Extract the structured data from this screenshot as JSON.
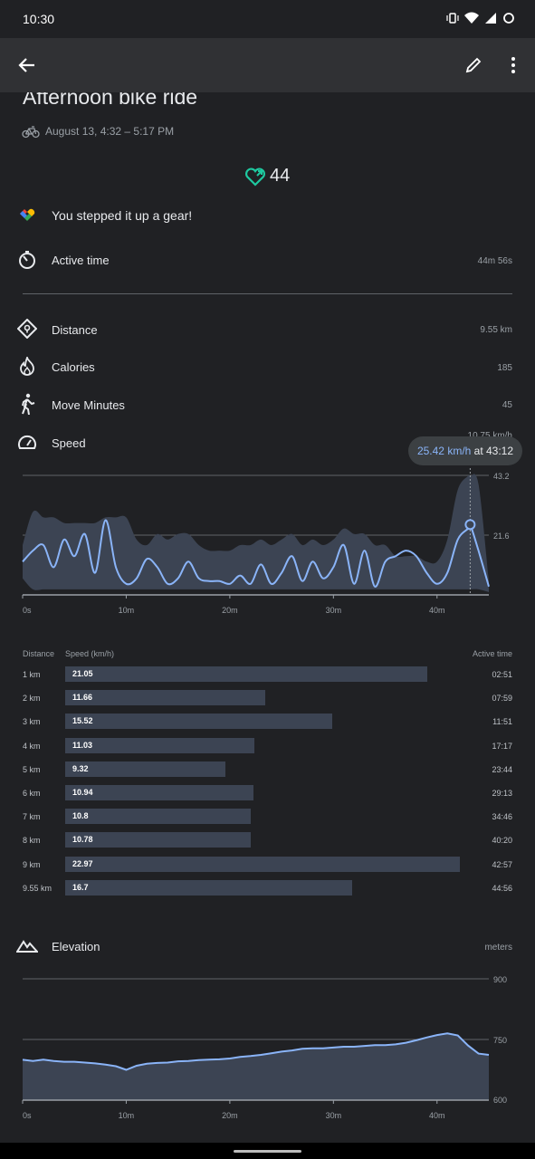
{
  "status_bar": {
    "time": "10:30"
  },
  "app_bar": {
    "back": "arrow-back-icon",
    "edit": "pencil-icon",
    "more": "more-vert-icon"
  },
  "activity": {
    "title": "Afternoon bike ride",
    "datetime": "August 13, 4:32 – 5:17 PM",
    "heart_points": "44"
  },
  "insight": "You stepped it up a gear!",
  "stats": {
    "active_time": {
      "label": "Active time",
      "value": "44m 56s"
    },
    "distance": {
      "label": "Distance",
      "value": "9.55 km"
    },
    "calories": {
      "label": "Calories",
      "value": "185"
    },
    "move_minutes": {
      "label": "Move Minutes",
      "value": "45"
    },
    "speed": {
      "label": "Speed",
      "value": "10.75 km/h"
    }
  },
  "speed_chart": {
    "tooltip_value": "25.42 km/h",
    "tooltip_suffix": " at 43:12",
    "ytick_top": "43.2",
    "ytick_mid": "21.6",
    "xticks": [
      "0s",
      "10m",
      "20m",
      "30m",
      "40m"
    ]
  },
  "splits": {
    "headers": {
      "distance": "Distance",
      "speed": "Speed (km/h)",
      "time": "Active time"
    },
    "rows": [
      {
        "distance": "1 km",
        "speed": 21.05,
        "speed_label": "21.05",
        "time": "02:51"
      },
      {
        "distance": "2 km",
        "speed": 11.66,
        "speed_label": "11.66",
        "time": "07:59"
      },
      {
        "distance": "3 km",
        "speed": 15.52,
        "speed_label": "15.52",
        "time": "11:51"
      },
      {
        "distance": "4 km",
        "speed": 11.03,
        "speed_label": "11.03",
        "time": "17:17"
      },
      {
        "distance": "5 km",
        "speed": 9.32,
        "speed_label": "9.32",
        "time": "23:44"
      },
      {
        "distance": "6 km",
        "speed": 10.94,
        "speed_label": "10.94",
        "time": "29:13"
      },
      {
        "distance": "7 km",
        "speed": 10.8,
        "speed_label": "10.8",
        "time": "34:46"
      },
      {
        "distance": "8 km",
        "speed": 10.78,
        "speed_label": "10.78",
        "time": "40:20"
      },
      {
        "distance": "9 km",
        "speed": 22.97,
        "speed_label": "22.97",
        "time": "42:57"
      },
      {
        "distance": "9.55 km",
        "speed": 16.7,
        "speed_label": "16.7",
        "time": "44:56"
      }
    ]
  },
  "elevation": {
    "label": "Elevation",
    "unit": "meters",
    "yticks": [
      "900",
      "750",
      "600"
    ],
    "xticks": [
      "0s",
      "10m",
      "20m",
      "30m",
      "40m"
    ]
  },
  "chart_data": [
    {
      "type": "line",
      "ylabel": "",
      "ylim": [
        0,
        43.2
      ],
      "xlim_minutes": [
        0,
        45
      ],
      "x_minutes": [
        0,
        1,
        2,
        3,
        4,
        5,
        6,
        7,
        8,
        9,
        10,
        11,
        12,
        13,
        14,
        15,
        16,
        17,
        18,
        19,
        20,
        21,
        22,
        23,
        24,
        25,
        26,
        27,
        28,
        29,
        30,
        31,
        32,
        33,
        34,
        35,
        36,
        37,
        38,
        39,
        40,
        41,
        42,
        43,
        43.2,
        44,
        45
      ],
      "y": [
        12,
        16,
        18,
        10,
        20,
        14,
        22,
        8,
        27,
        10,
        4,
        6,
        13,
        10,
        4,
        6,
        12,
        6,
        5,
        5,
        4,
        7,
        4,
        11,
        4,
        8,
        14,
        5,
        12,
        6,
        10,
        18,
        4,
        16,
        3,
        12,
        14,
        16,
        14,
        8,
        4,
        8,
        20,
        24,
        25.42,
        16,
        3
      ],
      "band_upper": [
        18,
        30,
        28,
        28,
        26,
        26,
        26,
        26,
        28,
        28,
        28,
        20,
        18,
        22,
        20,
        22,
        22,
        18,
        16,
        16,
        16,
        18,
        18,
        20,
        18,
        20,
        22,
        18,
        20,
        18,
        20,
        24,
        22,
        22,
        18,
        18,
        14,
        14,
        14,
        12,
        12,
        20,
        38,
        43,
        43,
        40,
        5
      ],
      "band_lower": [
        6,
        2,
        2,
        2,
        2,
        2,
        2,
        2,
        2,
        2,
        2,
        2,
        2,
        2,
        2,
        2,
        2,
        2,
        2,
        2,
        2,
        2,
        2,
        2,
        2,
        2,
        2,
        2,
        2,
        2,
        2,
        2,
        2,
        2,
        2,
        2,
        2,
        2,
        2,
        2,
        2,
        2,
        2,
        2,
        2,
        2,
        1
      ]
    },
    {
      "type": "area",
      "ylim": [
        600,
        900
      ],
      "xlim_minutes": [
        0,
        45
      ],
      "x_minutes": [
        0,
        1,
        2,
        3,
        4,
        5,
        6,
        7,
        8,
        9,
        10,
        11,
        12,
        13,
        14,
        15,
        16,
        17,
        18,
        19,
        20,
        21,
        22,
        23,
        24,
        25,
        26,
        27,
        28,
        29,
        30,
        31,
        32,
        33,
        34,
        35,
        36,
        37,
        38,
        39,
        40,
        41,
        42,
        43,
        44,
        45
      ],
      "y": [
        700,
        697,
        700,
        697,
        695,
        695,
        693,
        691,
        688,
        684,
        675,
        685,
        690,
        692,
        693,
        696,
        697,
        699,
        700,
        701,
        703,
        707,
        709,
        712,
        716,
        720,
        723,
        727,
        728,
        728,
        730,
        732,
        732,
        734,
        736,
        736,
        738,
        742,
        748,
        755,
        761,
        765,
        760,
        735,
        715,
        712
      ]
    }
  ]
}
